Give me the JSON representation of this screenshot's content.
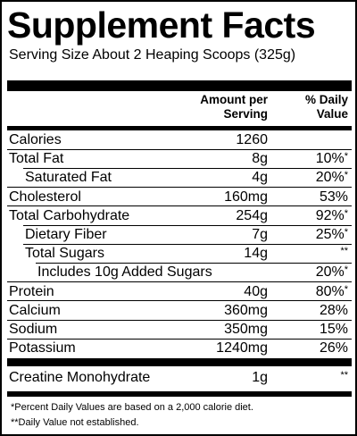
{
  "label": {
    "title": "Supplement Facts",
    "serving_size": "Serving Size About 2 Heaping Scoops (325g)",
    "header_amount_line1": "Amount per",
    "header_amount_line2": "Serving",
    "header_dv_line1": "% Daily",
    "header_dv_line2": "Value"
  },
  "nutrients": [
    {
      "name": "Calories",
      "amount": "1260",
      "dv": "",
      "mark": ""
    },
    {
      "name": "Total Fat",
      "amount": "8g",
      "dv": "10%",
      "mark": "*"
    },
    {
      "name": "Saturated Fat",
      "amount": "4g",
      "dv": "20%",
      "mark": "*"
    },
    {
      "name": "Cholesterol",
      "amount": "160mg",
      "dv": "53%",
      "mark": ""
    },
    {
      "name": "Total Carbohydrate",
      "amount": "254g",
      "dv": "92%",
      "mark": "*"
    },
    {
      "name": "Dietary Fiber",
      "amount": "7g",
      "dv": "25%",
      "mark": "*"
    },
    {
      "name": "Total Sugars",
      "amount": "14g",
      "dv": "",
      "mark": "**"
    },
    {
      "name": "Includes 10g Added Sugars",
      "amount": "",
      "dv": "20%",
      "mark": "*"
    },
    {
      "name": "Protein",
      "amount": "40g",
      "dv": "80%",
      "mark": "*"
    },
    {
      "name": "Calcium",
      "amount": "360mg",
      "dv": "28%",
      "mark": ""
    },
    {
      "name": "Sodium",
      "amount": "350mg",
      "dv": "15%",
      "mark": ""
    },
    {
      "name": "Potassium",
      "amount": "1240mg",
      "dv": "26%",
      "mark": ""
    }
  ],
  "other": {
    "name": "Creatine Monohydrate",
    "amount": "1g",
    "dv": "",
    "mark": "**"
  },
  "footnotes": {
    "note1": "*Percent Daily Values are based on a 2,000 calorie diet.",
    "note2": "**Daily Value not established."
  }
}
